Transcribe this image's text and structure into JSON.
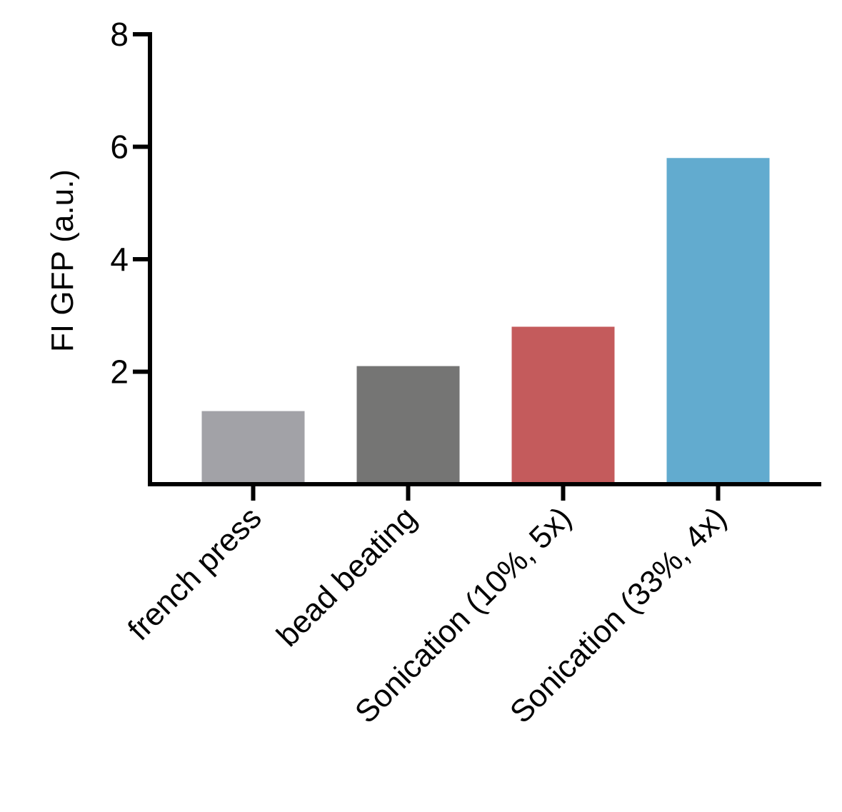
{
  "chart_data": {
    "type": "bar",
    "y_label": "FI GFP (a.u.)",
    "categories": [
      "french press",
      "bead beating",
      "Sonication (10%, 5x)",
      "Sonication (33%, 4x)"
    ],
    "values": [
      1.3,
      2.1,
      2.8,
      5.8
    ],
    "colors": [
      "#a2a2a7",
      "#757574",
      "#c45b5c",
      "#62abcf"
    ],
    "ylim": [
      0,
      8
    ],
    "yticks": [
      2,
      4,
      6,
      8
    ],
    "grid": false
  }
}
